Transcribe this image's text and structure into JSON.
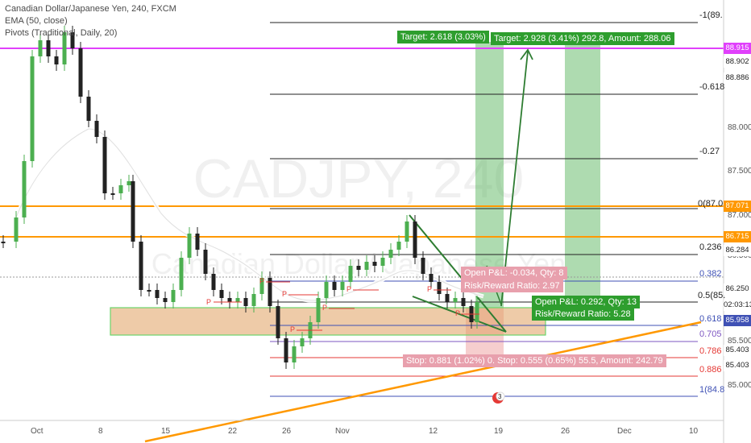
{
  "legend": {
    "title": "Canadian Dollar/Japanese Yen, 240, FXCM",
    "ema": "EMA (50, close)",
    "pivots": "Pivots (Traditional, Daily, 20)"
  },
  "watermark": {
    "line1": "CADJPY, 240",
    "line2": "Canadian Dollar / Japanese Yen"
  },
  "x_axis": [
    "Oct",
    "8",
    "15",
    "22",
    "26",
    "Nov",
    "12",
    "19",
    "26",
    "Dec",
    "10"
  ],
  "price_axis": [
    "88.000",
    "87.500",
    "87.000",
    "86.500",
    "85.500",
    "85.000",
    "86.000",
    "86.250"
  ],
  "price_tags": {
    "magenta": "88.915",
    "p1": "88.902",
    "p2": "88.886",
    "orange1": "87.071",
    "orange2": "86.715",
    "p3": "86.284",
    "p4": "86.250",
    "time": "02:03:13",
    "blue": "85.958",
    "red1": "85.403",
    "red2": "85.403"
  },
  "fib_levels": [
    "-1(89.",
    "-0.618",
    "-0.27",
    "0(87.0",
    "0.236",
    "0.382",
    "0.5(85.",
    "0.618",
    "0.705",
    "0.786",
    "0.886",
    "1(84.8"
  ],
  "targets": {
    "target1": "Target: 2.618 (3.03%)",
    "target2": "Target: 2.928 (3.41%) 292.8, Amount: 288.06",
    "open1": "Open P&L: -0.034, Qty: 8",
    "rr1": "Risk/Reward Ratio: 2.97",
    "open2": "Open P&L: 0.292, Qty: 13",
    "rr2": "Risk/Reward Ratio: 5.28",
    "stop": "Stop: 0.881 (1.02%) 0. Stop: 0.555 (0.65%) 55.5, Amount: 242.79"
  },
  "event_badge": "3",
  "colors": {
    "up": "#4caf50",
    "down": "#222222",
    "magenta": "#e040fb",
    "orange": "#ff9800",
    "blue": "#3f51b5",
    "red": "#e53935",
    "green_zone": "#8bc34a",
    "target_bg": "#2e9e2e",
    "stop_bg": "#e8a0ad"
  }
}
